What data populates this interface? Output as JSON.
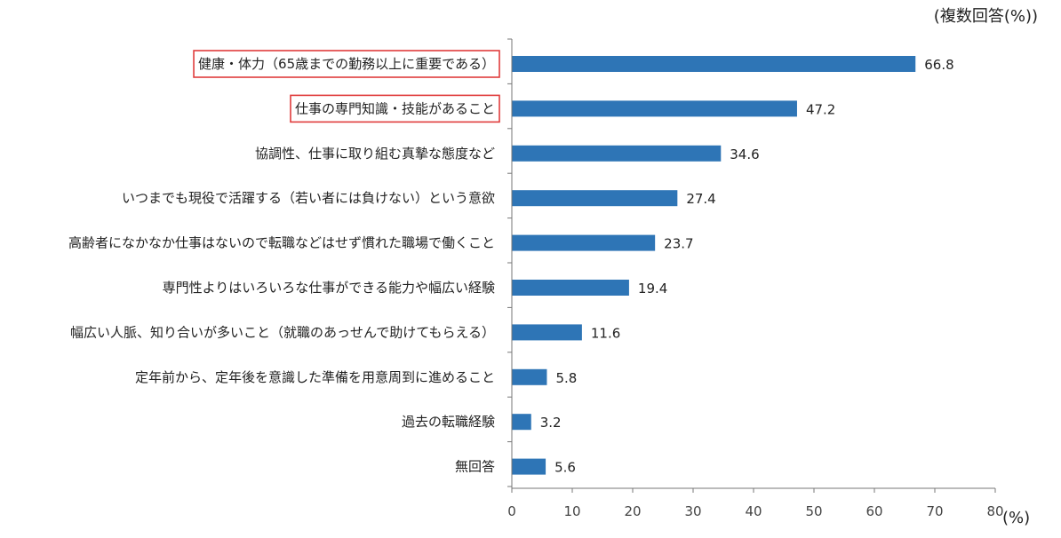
{
  "chart_data": {
    "type": "bar",
    "orientation": "horizontal",
    "note": "(複数回答(%))",
    "xlabel": "(%)",
    "xlim": [
      0,
      80
    ],
    "xticks": [
      0,
      10,
      20,
      30,
      40,
      50,
      60,
      70,
      80
    ],
    "bar_color": "#2e75b6",
    "highlight_color": "#e03c3c",
    "highlighted_categories": [
      0,
      1
    ],
    "categories": [
      "健康・体力（65歳までの勤務以上に重要である）",
      "仕事の専門知識・技能があること",
      "協調性、仕事に取り組む真摯な態度など",
      "いつまでも現役で活躍する（若い者には負けない）という意欲",
      "高齢者になかなか仕事はないので転職などはせず慣れた職場で働くこと",
      "専門性よりはいろいろな仕事ができる能力や幅広い経験",
      "幅広い人脈、知り合いが多いこと（就職のあっせんで助けてもらえる）",
      "定年前から、定年後を意識した準備を用意周到に進めること",
      "過去の転職経験",
      "無回答"
    ],
    "values": [
      66.8,
      47.2,
      34.6,
      27.4,
      23.7,
      19.4,
      11.6,
      5.8,
      3.2,
      5.6
    ],
    "value_labels": [
      "66.8",
      "47.2",
      "34.6",
      "27.4",
      "23.7",
      "19.4",
      "11.6",
      "5.8",
      "3.2",
      "5.6"
    ],
    "grid": false
  }
}
